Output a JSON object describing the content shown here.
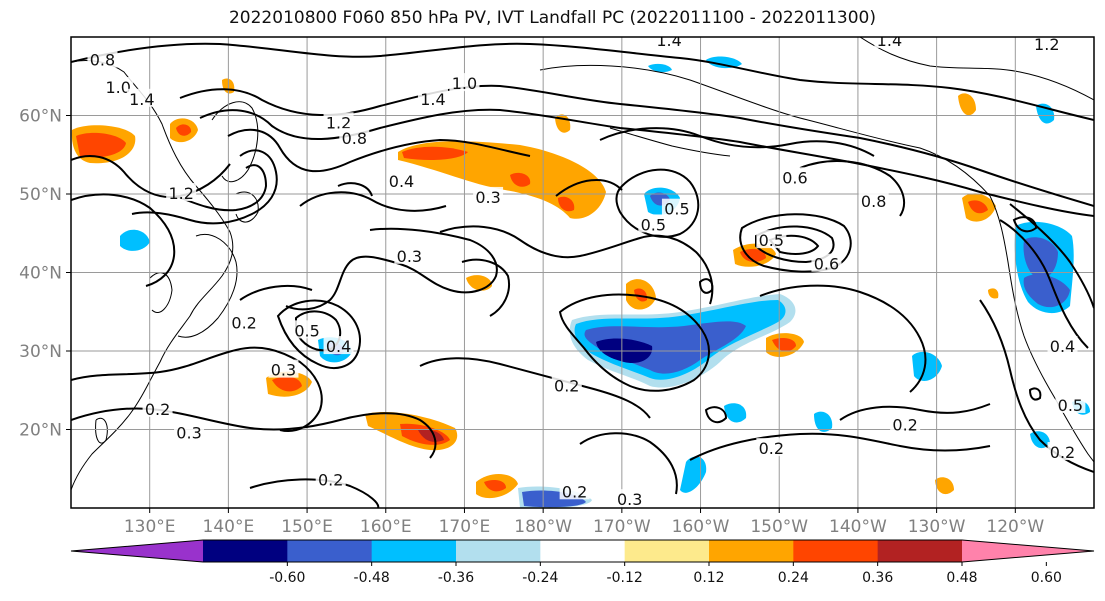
{
  "title": "2022010800 F060 850 hPa PV, IVT Landfall PC (2022011100 - 2022011300)",
  "map": {
    "projection": "PlateCarree",
    "lon_range": [
      120,
      250
    ],
    "lat_range": [
      10,
      70
    ],
    "grid": true,
    "lat_ticks": [
      {
        "lat": 60,
        "label": "60°N"
      },
      {
        "lat": 50,
        "label": "50°N"
      },
      {
        "lat": 40,
        "label": "40°N"
      },
      {
        "lat": 30,
        "label": "30°N"
      },
      {
        "lat": 20,
        "label": "20°N"
      }
    ],
    "lon_ticks": [
      {
        "lon": 130,
        "label": "130°E"
      },
      {
        "lon": 140,
        "label": "140°E"
      },
      {
        "lon": 150,
        "label": "150°E"
      },
      {
        "lon": 160,
        "label": "160°E"
      },
      {
        "lon": 170,
        "label": "170°E"
      },
      {
        "lon": 180,
        "label": "180°W"
      },
      {
        "lon": 190,
        "label": "170°W"
      },
      {
        "lon": 200,
        "label": "160°W"
      },
      {
        "lon": 210,
        "label": "150°W"
      },
      {
        "lon": 220,
        "label": "140°W"
      },
      {
        "lon": 230,
        "label": "130°W"
      },
      {
        "lon": 240,
        "label": "120°W"
      }
    ],
    "contour_labels": [
      {
        "lon": 124,
        "lat": 67,
        "text": "0.8"
      },
      {
        "lon": 126,
        "lat": 63.5,
        "text": "1.0"
      },
      {
        "lon": 129,
        "lat": 62,
        "text": "1.4"
      },
      {
        "lon": 134,
        "lat": 50,
        "text": "1.2"
      },
      {
        "lon": 154,
        "lat": 59,
        "text": "1.2"
      },
      {
        "lon": 166,
        "lat": 62,
        "text": "1.4"
      },
      {
        "lon": 170,
        "lat": 64,
        "text": "1.0"
      },
      {
        "lon": 156,
        "lat": 57,
        "text": "0.8"
      },
      {
        "lon": 162,
        "lat": 51.5,
        "text": "0.4"
      },
      {
        "lon": 173,
        "lat": 49.5,
        "text": "0.3"
      },
      {
        "lon": 163,
        "lat": 42,
        "text": "0.3"
      },
      {
        "lon": 142,
        "lat": 33.5,
        "text": "0.2"
      },
      {
        "lon": 150,
        "lat": 32.5,
        "text": "0.5"
      },
      {
        "lon": 154,
        "lat": 30.5,
        "text": "0.4"
      },
      {
        "lon": 147,
        "lat": 27.5,
        "text": "0.3"
      },
      {
        "lon": 131,
        "lat": 22.5,
        "text": "0.2"
      },
      {
        "lon": 135,
        "lat": 19.5,
        "text": "0.3"
      },
      {
        "lon": 153,
        "lat": 13.5,
        "text": "0.2"
      },
      {
        "lon": 183,
        "lat": 25.5,
        "text": "0.2"
      },
      {
        "lon": 184,
        "lat": 12,
        "text": "0.2"
      },
      {
        "lon": 191,
        "lat": 11,
        "text": "0.3"
      },
      {
        "lon": 194,
        "lat": 46,
        "text": "0.5"
      },
      {
        "lon": 197,
        "lat": 48,
        "text": "0.5"
      },
      {
        "lon": 212,
        "lat": 52,
        "text": "0.6"
      },
      {
        "lon": 222,
        "lat": 49,
        "text": "0.8"
      },
      {
        "lon": 209,
        "lat": 44,
        "text": "0.5"
      },
      {
        "lon": 216,
        "lat": 41,
        "text": "0.6"
      },
      {
        "lon": 209,
        "lat": 17.5,
        "text": "0.2"
      },
      {
        "lon": 226,
        "lat": 20.5,
        "text": "0.2"
      },
      {
        "lon": 246,
        "lat": 30.5,
        "text": "0.4"
      },
      {
        "lon": 247,
        "lat": 23,
        "text": "0.5"
      },
      {
        "lon": 246,
        "lat": 17,
        "text": "0.2"
      },
      {
        "lon": 196,
        "lat": 69.5,
        "text": "1.4"
      },
      {
        "lon": 224,
        "lat": 69.5,
        "text": "1.4"
      },
      {
        "lon": 244,
        "lat": 69,
        "text": "1.2"
      }
    ]
  },
  "colorbar": {
    "levels": [
      "-0.60",
      "-0.48",
      "-0.36",
      "-0.24",
      "-0.12",
      "0.12",
      "0.24",
      "0.36",
      "0.48",
      "0.60"
    ],
    "colors": [
      "#9932cc",
      "#000080",
      "#3a5fcd",
      "#00bfff",
      "#b2dfee",
      "#ffffff",
      "#fdea8c",
      "#ffa500",
      "#ff4500",
      "#b22222",
      "#ff82ab"
    ]
  }
}
